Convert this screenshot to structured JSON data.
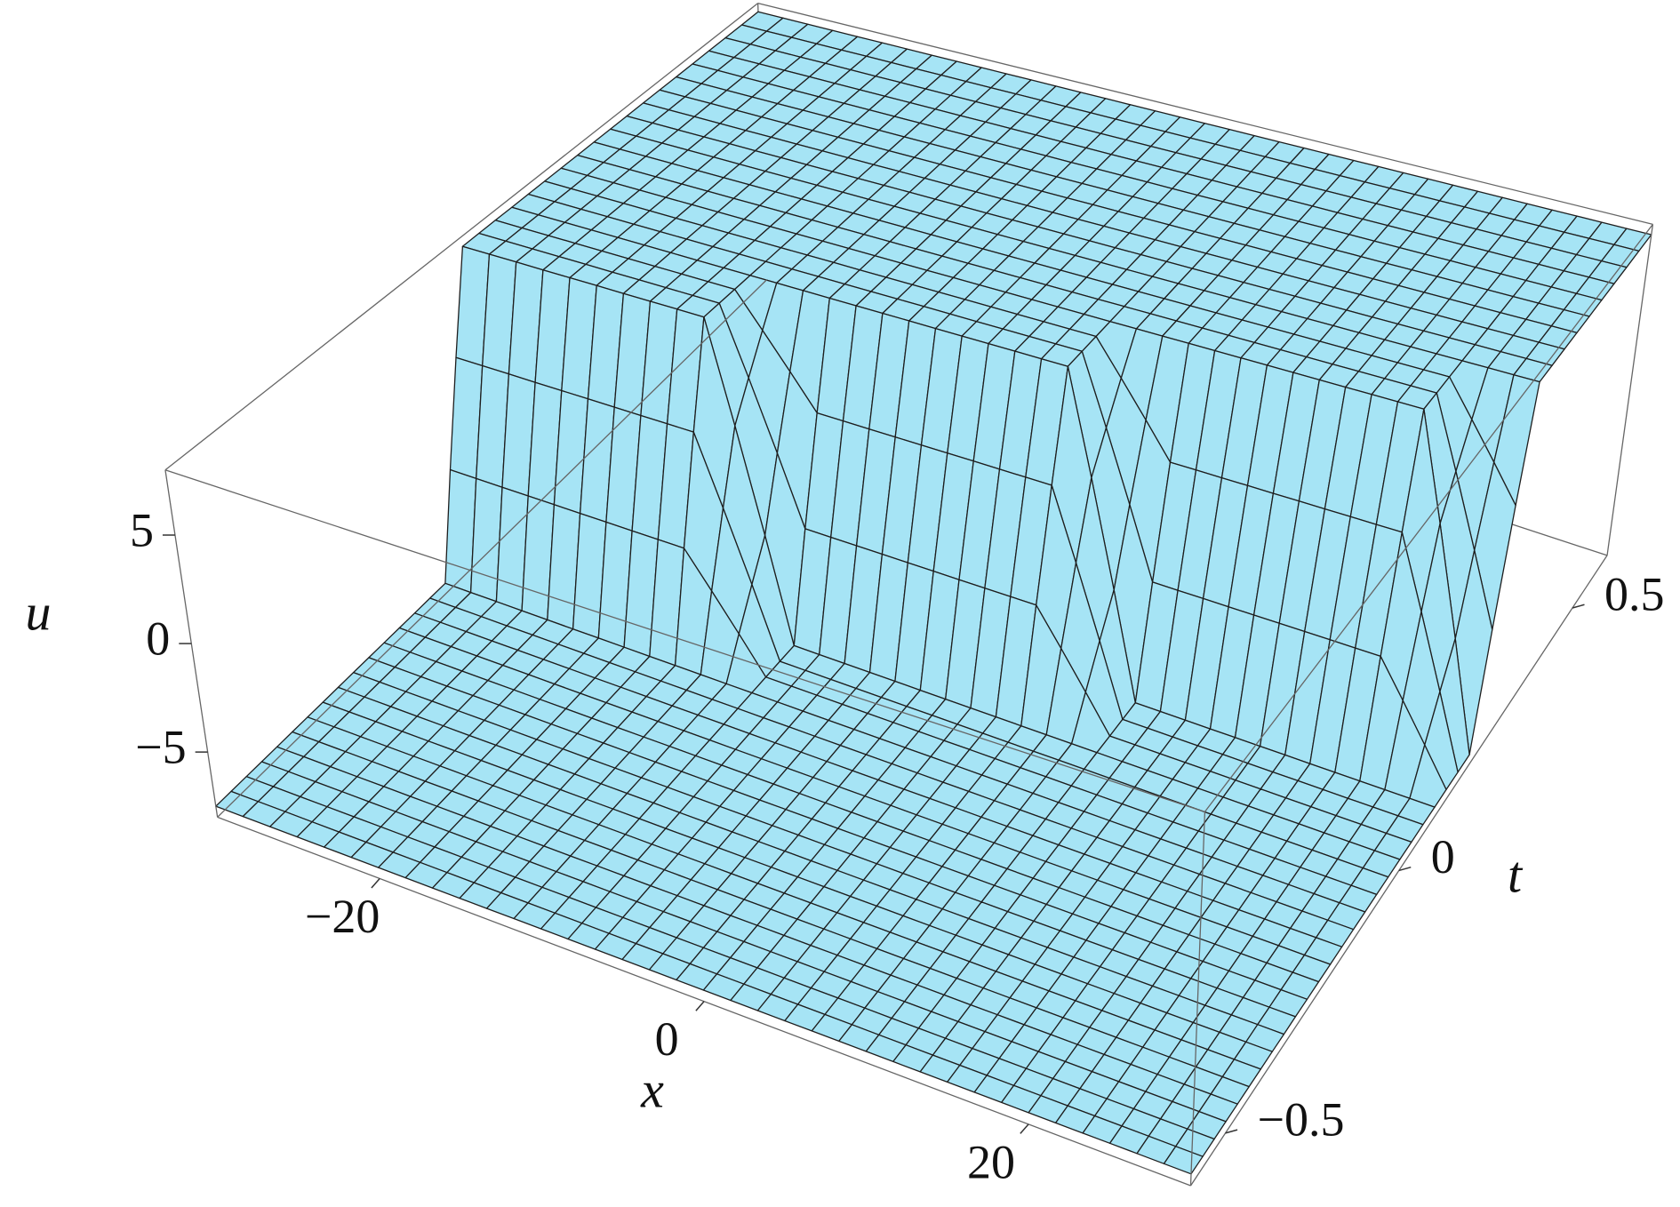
{
  "chart_data": {
    "type": "surface",
    "x_label": "x",
    "y_label": "t",
    "z_label": "u",
    "color": "#a6e4f5",
    "xlim": [
      -30,
      30
    ],
    "ylim": [
      -0.6,
      0.6
    ],
    "zlim": [
      -8,
      8
    ],
    "xticks": [
      {
        "value": -20,
        "label": "−20"
      },
      0,
      20
    ],
    "yticks": [
      {
        "value": -0.5,
        "label": "−0.5"
      },
      0,
      0.5
    ],
    "zticks": [
      {
        "value": -5,
        "label": "−5"
      },
      0,
      5
    ],
    "x": [
      -30,
      -25,
      -20,
      -15,
      -10,
      -5,
      0,
      5,
      10,
      15,
      20,
      25,
      30
    ],
    "t": [
      -0.6,
      -0.5,
      -0.4,
      -0.3,
      -0.2,
      -0.1,
      0,
      0.1,
      0.2,
      0.3,
      0.4,
      0.5,
      0.6
    ],
    "z": [
      [
        -7.5,
        -7.5,
        -7.5,
        -7.5,
        -7.5,
        -7.5,
        -7.5,
        -7.5,
        -7.5,
        -7.5,
        -7.5,
        -7.5,
        -7.5
      ],
      [
        -7.5,
        -7.5,
        -7.5,
        -7.5,
        -7.5,
        -7.5,
        -7.5,
        -7.5,
        -7.5,
        -7.5,
        -7.5,
        -7.5,
        -7.5
      ],
      [
        -7.5,
        -7.5,
        -7.5,
        -7.5,
        -7.5,
        -7.5,
        -7.5,
        -7.5,
        -7.5,
        -7.5,
        -7.5,
        -7.5,
        -7.5
      ],
      [
        -7.5,
        -7.5,
        -7.5,
        -7.5,
        -7.5,
        -7.5,
        -7.5,
        -7.5,
        -7.5,
        -7.5,
        -7.5,
        -7.5,
        -7.5
      ],
      [
        -7.5,
        -7.5,
        -7.5,
        -7.5,
        -7.5,
        -7.5,
        -7.5,
        -7.5,
        -7.5,
        -7.5,
        -7.5,
        -7.5,
        -7.5
      ],
      [
        -7.5,
        -7.5,
        -7.5,
        -7.5,
        -7.5,
        -7.5,
        -7.5,
        -7.5,
        -7.5,
        -7.5,
        -7.5,
        -7.5,
        -7.5
      ],
      [
        7.5,
        7.5,
        7.5,
        7.5,
        -7.5,
        -7.5,
        -7.5,
        -7.5,
        -7.5,
        -7.5,
        -7.5,
        -7.5,
        -7.5
      ],
      [
        7.5,
        7.5,
        7.5,
        7.5,
        7.5,
        7.5,
        7.5,
        7.5,
        -7.5,
        -7.5,
        -7.5,
        -7.5,
        -7.5
      ],
      [
        7.5,
        7.5,
        7.5,
        7.5,
        7.5,
        7.5,
        7.5,
        7.5,
        7.5,
        7.5,
        7.5,
        7.5,
        -7.5
      ],
      [
        7.5,
        7.5,
        7.5,
        7.5,
        7.5,
        7.5,
        7.5,
        7.5,
        7.5,
        7.5,
        7.5,
        7.5,
        7.5
      ],
      [
        7.5,
        7.5,
        7.5,
        7.5,
        7.5,
        7.5,
        7.5,
        7.5,
        7.5,
        7.5,
        7.5,
        7.5,
        7.5
      ],
      [
        7.5,
        7.5,
        7.5,
        7.5,
        7.5,
        7.5,
        7.5,
        7.5,
        7.5,
        7.5,
        7.5,
        7.5,
        7.5
      ],
      [
        7.5,
        7.5,
        7.5,
        7.5,
        7.5,
        7.5,
        7.5,
        7.5,
        7.5,
        7.5,
        7.5,
        7.5,
        7.5
      ]
    ]
  }
}
